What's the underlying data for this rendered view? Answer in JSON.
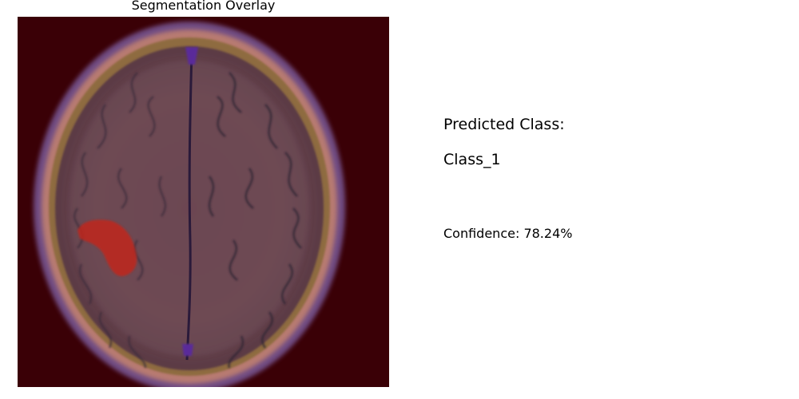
{
  "overlay": {
    "title": "Segmentation Overlay",
    "background_color": "#3a0006",
    "mask_color": "#c0251a"
  },
  "prediction": {
    "heading": "Predicted Class:",
    "value": "Class_1",
    "confidence_text": "Confidence: 78.24%"
  }
}
